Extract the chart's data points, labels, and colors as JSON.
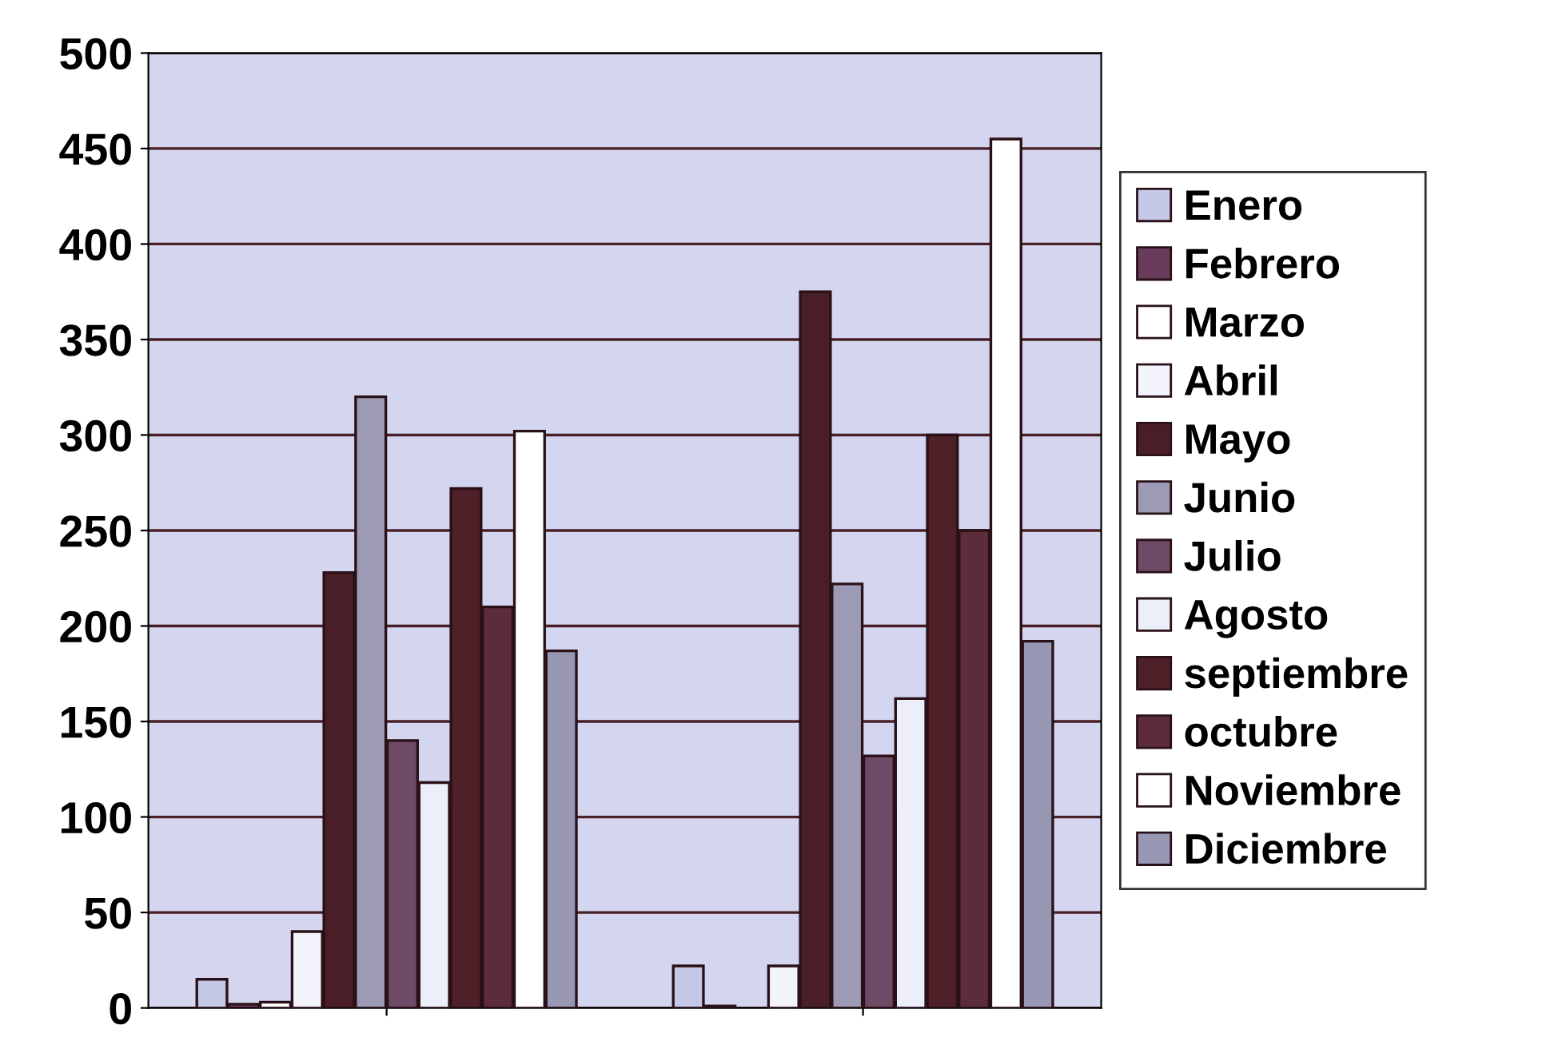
{
  "chart_data": {
    "type": "bar",
    "categories": [
      null,
      null
    ],
    "ylim": [
      0,
      500
    ],
    "yticks": [
      0,
      50,
      100,
      150,
      200,
      250,
      300,
      350,
      400,
      450,
      500
    ],
    "grid": "y",
    "legend": "right",
    "series": [
      {
        "name": "Enero",
        "color": "#c4c8e6",
        "values": [
          15,
          22
        ]
      },
      {
        "name": "Febrero",
        "color": "#6a3c5c",
        "values": [
          2,
          1
        ]
      },
      {
        "name": "Marzo",
        "color": "#ffffff",
        "values": [
          3,
          null
        ]
      },
      {
        "name": "Abril",
        "color": "#f4f4fc",
        "values": [
          40,
          22
        ]
      },
      {
        "name": "Mayo",
        "color": "#4a1e26",
        "values": [
          228,
          375
        ]
      },
      {
        "name": "Junio",
        "color": "#9c9ab4",
        "values": [
          320,
          222
        ]
      },
      {
        "name": "Julio",
        "color": "#6e4a66",
        "values": [
          140,
          132
        ]
      },
      {
        "name": "Agosto",
        "color": "#eceefa",
        "values": [
          118,
          162
        ]
      },
      {
        "name": "septiembre",
        "color": "#4e2028",
        "values": [
          272,
          300
        ]
      },
      {
        "name": "octubre",
        "color": "#5c2c3a",
        "values": [
          210,
          250
        ]
      },
      {
        "name": "Noviembre",
        "color": "#ffffff",
        "values": [
          302,
          455
        ]
      },
      {
        "name": "Diciembre",
        "color": "#9898b4",
        "values": [
          187,
          192
        ]
      }
    ]
  }
}
